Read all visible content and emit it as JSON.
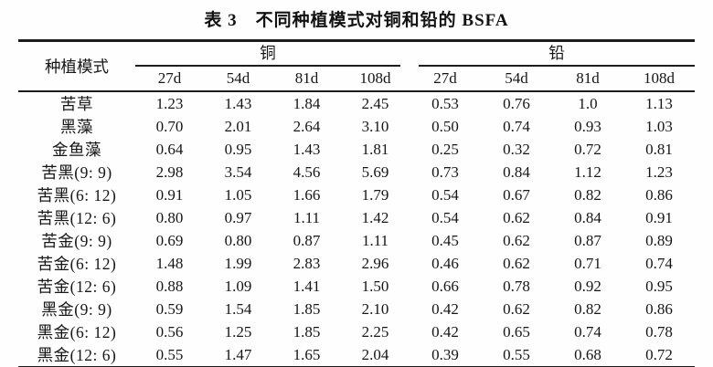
{
  "title": "表 3　不同种植模式对铜和铅的 BSFA",
  "table": {
    "corner_header": "种植模式",
    "group_headers": [
      {
        "label": "铜"
      },
      {
        "label": "铅"
      }
    ],
    "time_headers": [
      "27d",
      "54d",
      "81d",
      "108d"
    ],
    "rows": [
      {
        "label": "苦草",
        "cu": [
          "1.23",
          "1.43",
          "1.84",
          "2.45"
        ],
        "pb": [
          "0.53",
          "0.76",
          "1.0",
          "1.13"
        ]
      },
      {
        "label": "黑藻",
        "cu": [
          "0.70",
          "2.01",
          "2.64",
          "3.10"
        ],
        "pb": [
          "0.50",
          "0.74",
          "0.93",
          "1.03"
        ]
      },
      {
        "label": "金鱼藻",
        "cu": [
          "0.64",
          "0.95",
          "1.43",
          "1.81"
        ],
        "pb": [
          "0.25",
          "0.32",
          "0.72",
          "0.81"
        ]
      },
      {
        "label": "苦黑(9: 9)",
        "cu": [
          "2.98",
          "3.54",
          "4.56",
          "5.69"
        ],
        "pb": [
          "0.73",
          "0.84",
          "1.12",
          "1.23"
        ]
      },
      {
        "label": "苦黑(6: 12)",
        "cu": [
          "0.91",
          "1.05",
          "1.66",
          "1.79"
        ],
        "pb": [
          "0.54",
          "0.67",
          "0.82",
          "0.86"
        ]
      },
      {
        "label": "苦黑(12: 6)",
        "cu": [
          "0.80",
          "0.97",
          "1.11",
          "1.42"
        ],
        "pb": [
          "0.54",
          "0.62",
          "0.84",
          "0.91"
        ]
      },
      {
        "label": "苦金(9: 9)",
        "cu": [
          "0.69",
          "0.80",
          "0.87",
          "1.11"
        ],
        "pb": [
          "0.45",
          "0.62",
          "0.87",
          "0.89"
        ]
      },
      {
        "label": "苦金(6: 12)",
        "cu": [
          "1.48",
          "1.99",
          "2.83",
          "2.96"
        ],
        "pb": [
          "0.46",
          "0.62",
          "0.71",
          "0.74"
        ]
      },
      {
        "label": "苦金(12: 6)",
        "cu": [
          "0.88",
          "1.09",
          "1.41",
          "1.50"
        ],
        "pb": [
          "0.66",
          "0.78",
          "0.92",
          "0.95"
        ]
      },
      {
        "label": "黑金(9: 9)",
        "cu": [
          "0.59",
          "1.54",
          "1.85",
          "2.10"
        ],
        "pb": [
          "0.42",
          "0.62",
          "0.82",
          "0.86"
        ]
      },
      {
        "label": "黑金(6: 12)",
        "cu": [
          "0.56",
          "1.25",
          "1.85",
          "2.25"
        ],
        "pb": [
          "0.42",
          "0.65",
          "0.74",
          "0.78"
        ]
      },
      {
        "label": "黑金(12: 6)",
        "cu": [
          "0.55",
          "1.47",
          "1.65",
          "2.04"
        ],
        "pb": [
          "0.39",
          "0.55",
          "0.68",
          "0.72"
        ]
      }
    ]
  }
}
